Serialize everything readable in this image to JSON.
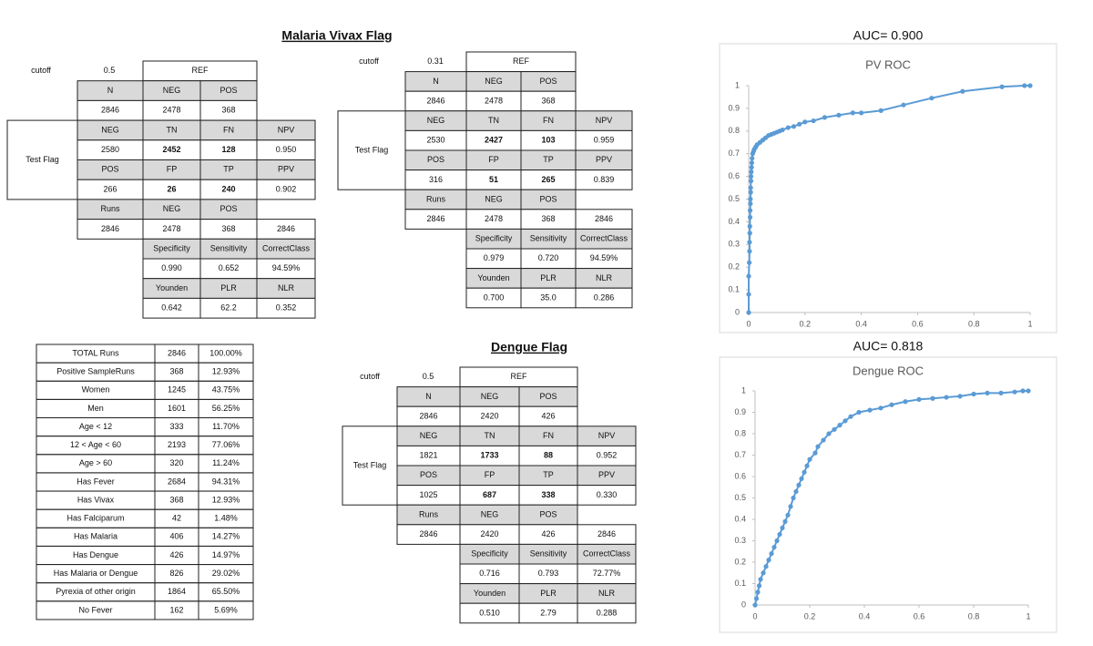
{
  "sections": {
    "malaria_title": "Malaria Vivax Flag",
    "dengue_title": "Dengue Flag"
  },
  "tables": [
    {
      "cutoff_label": "cutoff",
      "cutoff": "0.5",
      "ref": "REF",
      "side_label": "Test Flag",
      "rows": [
        [
          "N",
          "NEG",
          "POS",
          null
        ],
        [
          "2846",
          "2478",
          "368",
          null
        ],
        [
          "NEG",
          "TN",
          "FN",
          "NPV"
        ],
        [
          "2580",
          "2452",
          "128",
          "0.950"
        ],
        [
          "POS",
          "FP",
          "TP",
          "PPV"
        ],
        [
          "266",
          "26",
          "240",
          "0.902"
        ],
        [
          "Runs",
          "NEG",
          "POS",
          null
        ],
        [
          "2846",
          "2478",
          "368",
          "2846"
        ],
        [
          null,
          "Specificity",
          "Sensitivity",
          "CorrectClass"
        ],
        [
          null,
          "0.990",
          "0.652",
          "94.59%"
        ],
        [
          null,
          "Younden",
          "PLR",
          "NLR"
        ],
        [
          null,
          "0.642",
          "62.2",
          "0.352"
        ]
      ]
    },
    {
      "cutoff_label": "cutoff",
      "cutoff": "0.31",
      "ref": "REF",
      "side_label": "Test Flag",
      "rows": [
        [
          "N",
          "NEG",
          "POS",
          null
        ],
        [
          "2846",
          "2478",
          "368",
          null
        ],
        [
          "NEG",
          "TN",
          "FN",
          "NPV"
        ],
        [
          "2530",
          "2427",
          "103",
          "0.959"
        ],
        [
          "POS",
          "FP",
          "TP",
          "PPV"
        ],
        [
          "316",
          "51",
          "265",
          "0.839"
        ],
        [
          "Runs",
          "NEG",
          "POS",
          null
        ],
        [
          "2846",
          "2478",
          "368",
          "2846"
        ],
        [
          null,
          "Specificity",
          "Sensitivity",
          "CorrectClass"
        ],
        [
          null,
          "0.979",
          "0.720",
          "94.59%"
        ],
        [
          null,
          "Younden",
          "PLR",
          "NLR"
        ],
        [
          null,
          "0.700",
          "35.0",
          "0.286"
        ]
      ]
    },
    {
      "cutoff_label": "cutoff",
      "cutoff": "0.5",
      "ref": "REF",
      "side_label": "Test Flag",
      "rows": [
        [
          "N",
          "NEG",
          "POS",
          null
        ],
        [
          "2846",
          "2420",
          "426",
          null
        ],
        [
          "NEG",
          "TN",
          "FN",
          "NPV"
        ],
        [
          "1821",
          "1733",
          "88",
          "0.952"
        ],
        [
          "POS",
          "FP",
          "TP",
          "PPV"
        ],
        [
          "1025",
          "687",
          "338",
          "0.330"
        ],
        [
          "Runs",
          "NEG",
          "POS",
          null
        ],
        [
          "2846",
          "2420",
          "426",
          "2846"
        ],
        [
          null,
          "Specificity",
          "Sensitivity",
          "CorrectClass"
        ],
        [
          null,
          "0.716",
          "0.793",
          "72.77%"
        ],
        [
          null,
          "Younden",
          "PLR",
          "NLR"
        ],
        [
          null,
          "0.510",
          "2.79",
          "0.288"
        ]
      ]
    }
  ],
  "summary": {
    "rows": [
      [
        "TOTAL Runs",
        "2846",
        "100.00%"
      ],
      [
        "Positive SampleRuns",
        "368",
        "12.93%"
      ],
      [
        "Women",
        "1245",
        "43.75%"
      ],
      [
        "Men",
        "1601",
        "56.25%"
      ],
      [
        "Age < 12",
        "333",
        "11.70%"
      ],
      [
        "12 < Age < 60",
        "2193",
        "77.06%"
      ],
      [
        "Age > 60",
        "320",
        "11.24%"
      ],
      [
        "Has Fever",
        "2684",
        "94.31%"
      ],
      [
        "Has Vivax",
        "368",
        "12.93%"
      ],
      [
        "Has Falciparum",
        "42",
        "1.48%"
      ],
      [
        "Has Malaria",
        "406",
        "14.27%"
      ],
      [
        "Has Dengue",
        "426",
        "14.97%"
      ],
      [
        "Has Malaria or Dengue",
        "826",
        "29.02%"
      ],
      [
        "Pyrexia of other origin",
        "1864",
        "65.50%"
      ],
      [
        "No Fever",
        "162",
        "5.69%"
      ]
    ]
  },
  "chart_data": [
    {
      "type": "line",
      "title": "AUC= 0.900",
      "subtitle": "PV ROC",
      "color": "#5b9bd5",
      "x": [
        0,
        0,
        0,
        0.002,
        0.003,
        0.003,
        0.004,
        0.004,
        0.005,
        0.005,
        0.006,
        0.006,
        0.007,
        0.007,
        0.008,
        0.008,
        0.009,
        0.01,
        0.011,
        0.012,
        0.014,
        0.017,
        0.02,
        0.025,
        0.03,
        0.04,
        0.05,
        0.06,
        0.07,
        0.08,
        0.09,
        0.1,
        0.11,
        0.12,
        0.14,
        0.16,
        0.18,
        0.2,
        0.23,
        0.27,
        0.32,
        0.37,
        0.4,
        0.47,
        0.55,
        0.65,
        0.76,
        0.9,
        0.98,
        1
      ],
      "values": [
        0,
        0.08,
        0.16,
        0.22,
        0.27,
        0.31,
        0.35,
        0.38,
        0.42,
        0.45,
        0.48,
        0.5,
        0.53,
        0.55,
        0.58,
        0.6,
        0.62,
        0.64,
        0.66,
        0.68,
        0.7,
        0.71,
        0.72,
        0.73,
        0.74,
        0.75,
        0.76,
        0.77,
        0.78,
        0.785,
        0.79,
        0.795,
        0.8,
        0.805,
        0.815,
        0.82,
        0.83,
        0.84,
        0.845,
        0.86,
        0.87,
        0.88,
        0.88,
        0.89,
        0.915,
        0.945,
        0.975,
        0.995,
        1,
        1
      ],
      "xlim": [
        0,
        1
      ],
      "ylim": [
        0,
        1
      ],
      "xticks": [
        0,
        0.2,
        0.4,
        0.6,
        0.8,
        1
      ],
      "yticks": [
        0,
        0.1,
        0.2,
        0.3,
        0.4,
        0.5,
        0.6,
        0.7,
        0.8,
        0.9,
        1
      ]
    },
    {
      "type": "line",
      "title": "AUC= 0.818",
      "subtitle": "Dengue ROC",
      "color": "#5b9bd5",
      "x": [
        0,
        0.005,
        0.01,
        0.015,
        0.02,
        0.03,
        0.04,
        0.05,
        0.06,
        0.07,
        0.08,
        0.09,
        0.1,
        0.11,
        0.12,
        0.13,
        0.14,
        0.15,
        0.16,
        0.17,
        0.18,
        0.19,
        0.2,
        0.22,
        0.23,
        0.25,
        0.27,
        0.29,
        0.31,
        0.33,
        0.35,
        0.38,
        0.42,
        0.46,
        0.5,
        0.55,
        0.6,
        0.65,
        0.7,
        0.75,
        0.8,
        0.85,
        0.9,
        0.95,
        0.98,
        1
      ],
      "values": [
        0,
        0.03,
        0.06,
        0.09,
        0.12,
        0.15,
        0.18,
        0.21,
        0.24,
        0.27,
        0.3,
        0.33,
        0.36,
        0.39,
        0.42,
        0.46,
        0.5,
        0.53,
        0.56,
        0.59,
        0.62,
        0.65,
        0.68,
        0.71,
        0.74,
        0.77,
        0.8,
        0.82,
        0.84,
        0.86,
        0.88,
        0.9,
        0.91,
        0.92,
        0.935,
        0.95,
        0.96,
        0.965,
        0.97,
        0.975,
        0.985,
        0.99,
        0.99,
        0.995,
        1,
        1
      ],
      "xlim": [
        0,
        1
      ],
      "ylim": [
        0,
        1
      ],
      "xticks": [
        0,
        0.2,
        0.4,
        0.6,
        0.8,
        1
      ],
      "yticks": [
        0,
        0.1,
        0.2,
        0.3,
        0.4,
        0.5,
        0.6,
        0.7,
        0.8,
        0.9,
        1
      ]
    }
  ]
}
